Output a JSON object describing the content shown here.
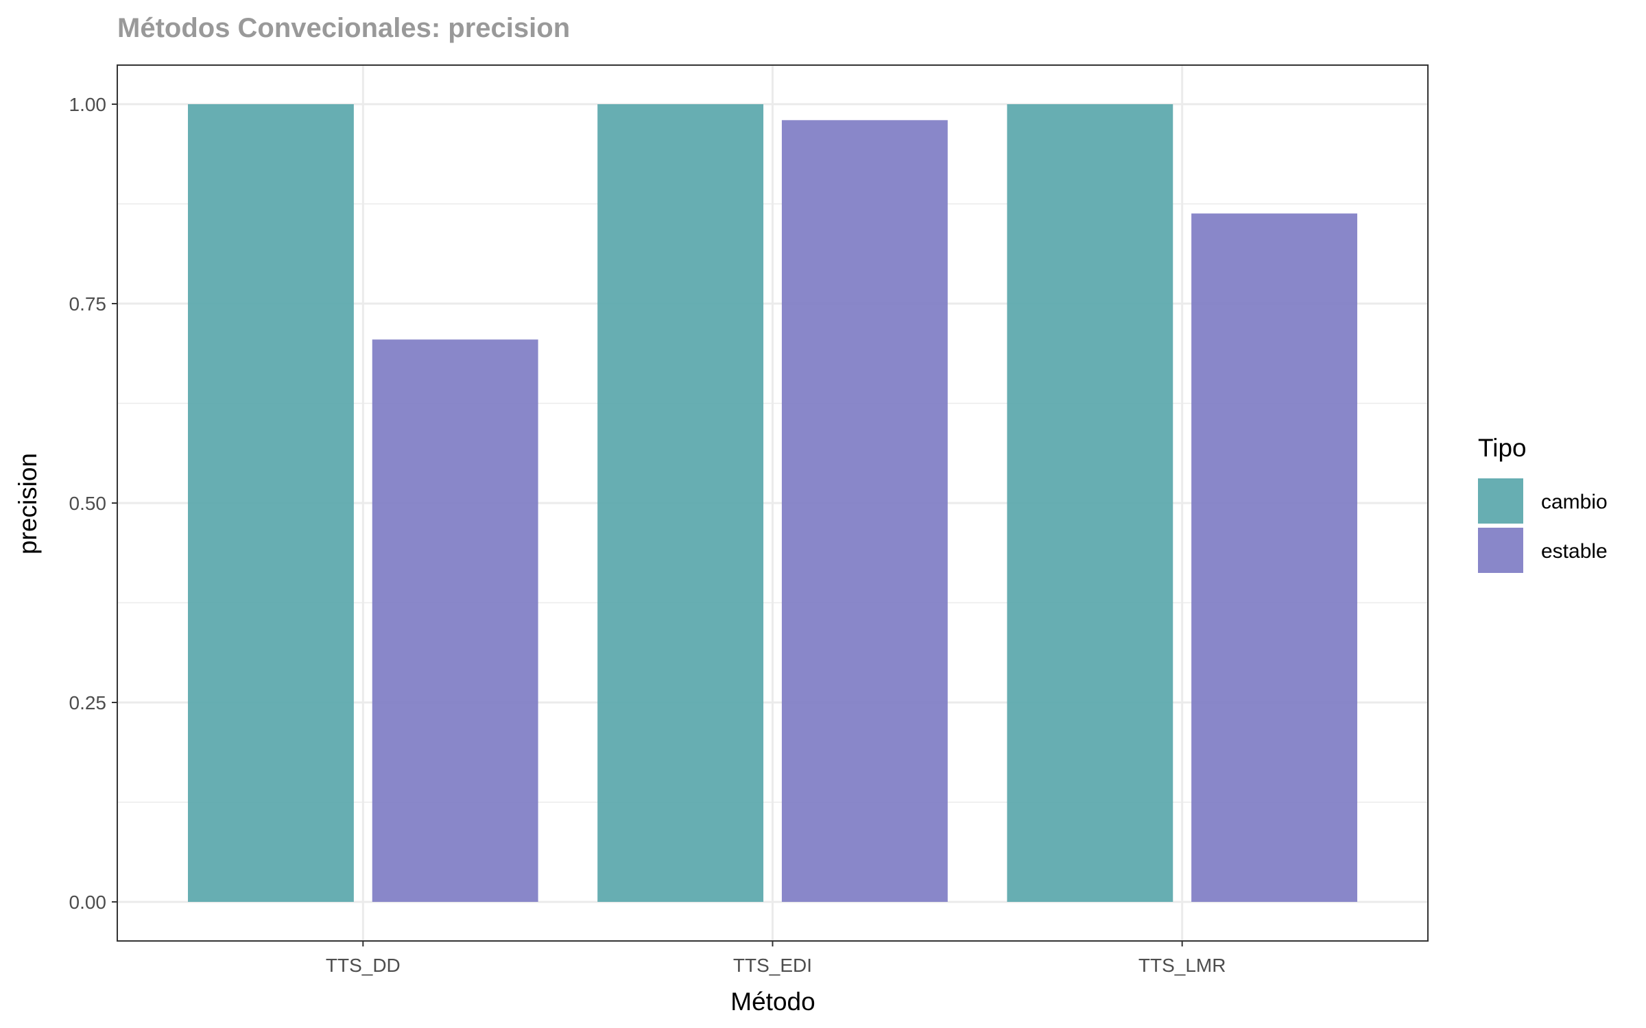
{
  "chart_data": {
    "type": "bar",
    "title": "Métodos Convecionales: precision",
    "xlabel": "Método",
    "ylabel": "precision",
    "categories": [
      "TTS_DD",
      "TTS_EDI",
      "TTS_LMR"
    ],
    "series": [
      {
        "name": "cambio",
        "color": "#5aa7ab",
        "values": [
          1.0,
          1.0,
          1.0
        ]
      },
      {
        "name": "estable",
        "color": "#7f7dc4",
        "values": [
          0.705,
          0.98,
          0.863
        ]
      }
    ],
    "ylim": [
      -0.049,
      1.049
    ],
    "yticks": [
      0,
      0.25,
      0.5,
      0.75,
      1.0
    ],
    "ytick_labels": [
      "0.00",
      "0.25",
      "0.50",
      "0.75",
      "1.00"
    ],
    "grid": true,
    "legend": {
      "title": "Tipo",
      "position": "right"
    }
  }
}
